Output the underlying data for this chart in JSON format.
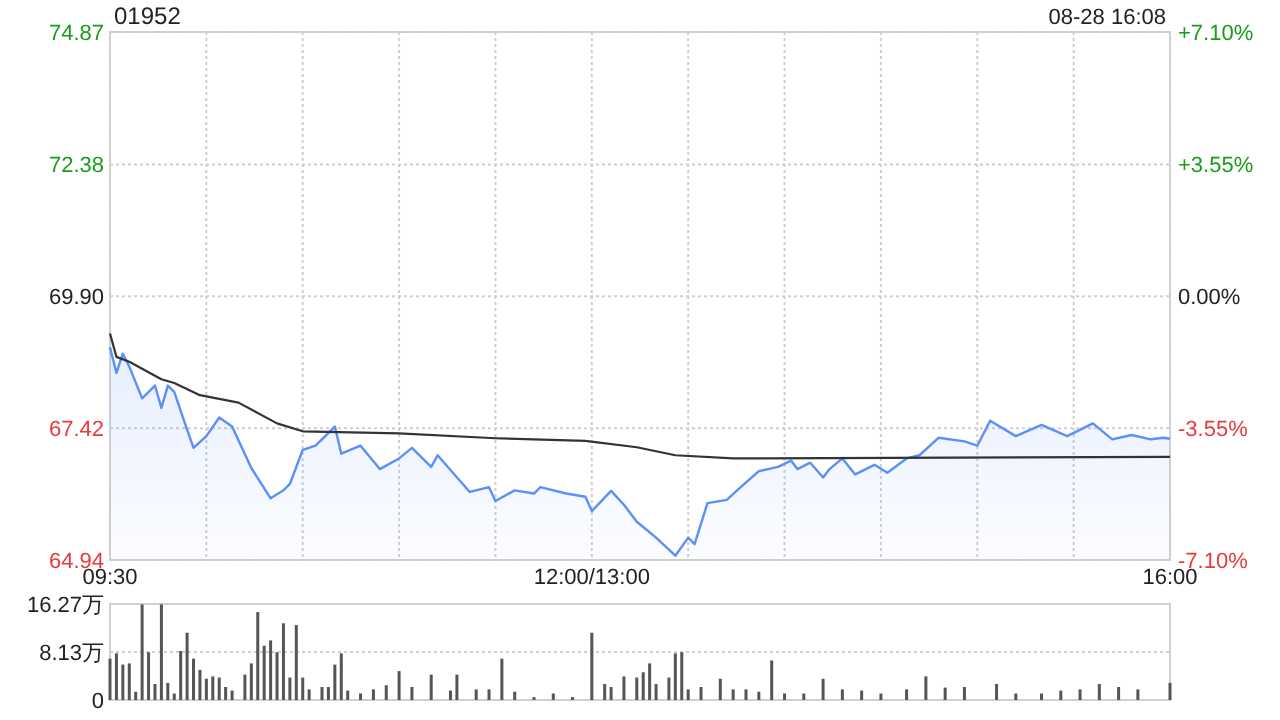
{
  "chart_data": [
    {
      "type": "area",
      "title": "01952",
      "annotations": [
        "08-28 16:08"
      ],
      "categories": [
        "09:30",
        null,
        null,
        null,
        null,
        null,
        null,
        null,
        null,
        null,
        null,
        null,
        null,
        null,
        null,
        null,
        null,
        null,
        null,
        null,
        null,
        null,
        null,
        null,
        null,
        null,
        null,
        null,
        null,
        null,
        null,
        null,
        null,
        null,
        null,
        null,
        null,
        null,
        null,
        null,
        null,
        null,
        null,
        null,
        null,
        null,
        null,
        null,
        null,
        null,
        null,
        null,
        null,
        null,
        null,
        null,
        null,
        null,
        null,
        null,
        null,
        null,
        null,
        null,
        null,
        null,
        null,
        null,
        null,
        null,
        null,
        null,
        null,
        null,
        null,
        "12:00/13:00",
        null,
        null,
        null,
        null,
        null,
        null,
        null,
        null,
        null,
        null,
        null,
        null,
        null,
        null,
        null,
        null,
        null,
        null,
        null,
        null,
        null,
        null,
        null,
        null,
        null,
        null,
        null,
        null,
        null,
        null,
        null,
        null,
        null,
        null,
        null,
        null,
        null,
        null,
        null,
        null,
        null,
        null,
        null,
        null,
        null,
        null,
        null,
        null,
        null,
        null,
        null,
        null,
        null,
        null,
        null,
        null,
        null,
        null,
        null,
        null,
        null,
        null,
        null,
        null,
        null,
        null,
        null,
        null,
        null,
        null,
        null,
        null,
        null,
        null,
        null,
        null,
        null,
        null,
        null,
        null,
        null,
        null,
        null,
        null,
        null,
        null,
        null,
        null,
        null,
        "16:00"
      ],
      "ylim": [
        64.94,
        74.87
      ],
      "yticks": [
        64.94,
        67.42,
        {
          "value": 69.9,
          "label": "69.90"
        },
        72.38,
        74.87
      ],
      "y2lim": [
        -7.1,
        7.1
      ],
      "y2ticks": [
        {
          "value": -7.1,
          "label": "-7.10%"
        },
        {
          "value": -3.55,
          "label": "-3.55%"
        },
        {
          "value": 0,
          "label": "0.00%"
        },
        {
          "value": 3.55,
          "label": "+3.55%"
        },
        {
          "value": 7.1,
          "label": "+7.10%"
        }
      ],
      "grid": true,
      "series": [
        {
          "color": "#5b8ff9",
          "values": [
            68.94,
            68.46,
            68.82,
            68.58,
            null,
            67.98,
            null,
            68.22,
            67.8,
            68.22,
            68.1,
            null,
            67.39,
            67.05,
            null,
            67.27,
            null,
            67.62,
            null,
            67.45,
            null,
            null,
            66.67,
            null,
            null,
            66.1,
            null,
            66.25,
            66.37,
            null,
            67.01,
            null,
            67.09,
            null,
            null,
            67.45,
            66.94,
            null,
            null,
            67.09,
            null,
            null,
            66.65,
            null,
            null,
            66.85,
            null,
            67.05,
            null,
            null,
            66.69,
            66.91,
            null,
            null,
            null,
            null,
            66.22,
            null,
            null,
            66.31,
            66.05,
            null,
            null,
            66.25,
            null,
            null,
            66.19,
            66.31,
            null,
            null,
            null,
            66.19,
            null,
            null,
            66.13,
            65.86,
            null,
            null,
            66.24,
            null,
            65.98,
            null,
            65.66,
            null,
            null,
            65.36,
            null,
            null,
            65.02,
            null,
            65.36,
            65.24,
            null,
            66.01,
            null,
            null,
            66.07,
            null,
            66.29,
            null,
            null,
            66.61,
            null,
            null,
            66.69,
            null,
            66.81,
            66.65,
            null,
            66.77,
            null,
            66.49,
            66.65,
            null,
            66.85,
            null,
            66.55,
            null,
            null,
            66.73,
            null,
            66.58,
            null,
            null,
            66.85,
            null,
            66.91,
            null,
            null,
            67.24,
            null,
            null,
            null,
            67.17,
            null,
            67.09,
            null,
            67.56,
            null,
            null,
            null,
            67.27,
            null,
            null,
            null,
            67.48,
            null,
            null,
            null,
            67.27,
            null,
            null,
            null,
            67.51,
            null,
            null,
            67.21,
            null,
            null,
            67.29,
            null,
            null,
            67.21,
            null,
            67.24,
            67.22
          ]
        },
        {
          "type": "line",
          "color": "#333333",
          "values": [
            69.2,
            68.76,
            null,
            68.67,
            null,
            null,
            null,
            null,
            68.34,
            null,
            68.27,
            null,
            null,
            null,
            68.04,
            null,
            null,
            null,
            null,
            null,
            67.9,
            null,
            null,
            null,
            null,
            null,
            67.51,
            null,
            null,
            null,
            67.36,
            null,
            null,
            null,
            null,
            null,
            null,
            null,
            null,
            null,
            null,
            null,
            null,
            null,
            null,
            67.32,
            null,
            null,
            null,
            null,
            null,
            null,
            null,
            null,
            null,
            null,
            null,
            null,
            null,
            null,
            67.23,
            null,
            null,
            null,
            null,
            null,
            null,
            null,
            null,
            null,
            null,
            null,
            null,
            null,
            67.18,
            null,
            null,
            null,
            null,
            null,
            null,
            null,
            67.06,
            null,
            null,
            null,
            null,
            null,
            66.91,
            null,
            null,
            null,
            null,
            null,
            null,
            null,
            null,
            66.85,
            null,
            null,
            null,
            null,
            null,
            null,
            null,
            null,
            null,
            null,
            null,
            null,
            null,
            null,
            null,
            null,
            null,
            null,
            null,
            null,
            null,
            null,
            null,
            null,
            null,
            null,
            null,
            null,
            null,
            null,
            null,
            null,
            null,
            null,
            null,
            null,
            null,
            null,
            null,
            null,
            null,
            null,
            null,
            null,
            null,
            null,
            null,
            null,
            null,
            null,
            null,
            null,
            null,
            null,
            null,
            null,
            null,
            null,
            null,
            null,
            null,
            null,
            null,
            null,
            null,
            null,
            null,
            66.88
          ]
        }
      ]
    },
    {
      "type": "bar",
      "color": "#555555",
      "tick_labels": "y",
      "grid": "y",
      "categories": [
        null,
        null,
        null,
        null,
        null,
        null,
        null,
        null,
        null,
        null,
        null,
        null,
        null,
        null,
        null,
        null,
        null,
        null,
        null,
        null,
        null,
        null,
        null,
        null,
        null,
        null,
        null,
        null,
        null,
        null,
        null,
        null,
        null,
        null,
        null,
        null,
        null,
        null,
        null,
        null,
        null,
        null,
        null,
        null,
        null,
        null,
        null,
        null,
        null,
        null,
        null,
        null,
        null,
        null,
        null,
        null,
        null,
        null,
        null,
        null,
        null,
        null,
        null,
        null,
        null,
        null,
        null,
        null,
        null,
        null,
        null,
        null,
        null,
        null,
        null,
        null,
        null,
        null,
        null,
        null,
        null,
        null,
        null,
        null,
        null,
        null,
        null,
        null,
        null,
        null,
        null,
        null,
        null,
        null,
        null,
        null,
        null,
        null,
        null,
        null,
        null,
        null,
        null,
        null,
        null,
        null,
        null,
        null,
        null,
        null,
        null,
        null,
        null,
        null,
        null,
        null,
        null,
        null,
        null,
        null,
        null,
        null,
        null,
        null,
        null,
        null,
        null,
        null,
        null,
        null,
        null,
        null,
        null,
        null,
        null,
        null,
        null,
        null,
        null,
        null,
        null,
        null,
        null,
        null,
        null,
        null,
        null,
        null,
        null,
        null,
        null,
        null,
        null,
        null,
        null,
        null,
        null,
        null,
        null,
        null,
        null,
        null,
        null,
        null,
        null,
        null
      ],
      "ylim": [
        0,
        16.27
      ],
      "yticks": [
        0,
        {
          "value": 8.13,
          "label": "8.13万"
        },
        {
          "value": 16.27,
          "label": "16.27万"
        }
      ],
      "values": [
        7.0,
        7.9,
        6.0,
        6.2,
        1.4,
        16.2,
        8.1,
        2.7,
        16.2,
        2.9,
        1.1,
        8.3,
        11.4,
        7.0,
        5.1,
        3.6,
        4.0,
        3.8,
        2.2,
        1.6,
        null,
        4.3,
        6.2,
        14.9,
        9.2,
        10.1,
        8.1,
        13.0,
        3.8,
        12.7,
        3.8,
        1.8,
        null,
        2.2,
        2.2,
        6.0,
        7.9,
        1.6,
        null,
        1.1,
        null,
        1.8,
        null,
        2.5,
        null,
        4.9,
        null,
        2.2,
        null,
        null,
        4.3,
        null,
        null,
        1.6,
        4.3,
        null,
        null,
        1.8,
        null,
        1.8,
        null,
        7.0,
        null,
        1.4,
        null,
        null,
        0.5,
        null,
        null,
        1.1,
        null,
        null,
        0.5,
        null,
        null,
        11.4,
        null,
        2.7,
        2.2,
        null,
        4.0,
        null,
        3.8,
        4.7,
        6.2,
        2.7,
        null,
        3.8,
        7.9,
        8.1,
        1.8,
        null,
        2.2,
        null,
        null,
        3.6,
        null,
        1.8,
        null,
        1.8,
        null,
        1.4,
        null,
        6.7,
        null,
        1.1,
        null,
        null,
        1.1,
        null,
        null,
        3.6,
        null,
        null,
        1.8,
        null,
        null,
        1.6,
        null,
        null,
        1.1,
        null,
        null,
        null,
        1.8,
        null,
        null,
        4.0,
        null,
        null,
        2.1,
        null,
        null,
        2.2,
        null,
        null,
        null,
        null,
        2.7,
        null,
        null,
        1.1,
        null,
        null,
        null,
        1.1,
        null,
        null,
        1.6,
        null,
        null,
        1.8,
        null,
        null,
        2.7,
        null,
        null,
        2.2,
        null,
        null,
        1.8,
        null,
        null,
        null,
        null,
        2.9
      ]
    }
  ]
}
